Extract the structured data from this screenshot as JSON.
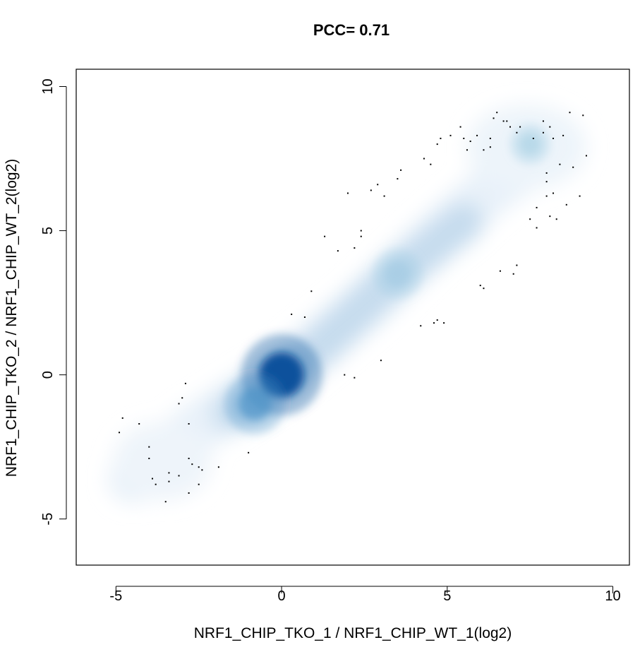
{
  "chart_data": {
    "type": "scatter",
    "style": "smoothScatter density",
    "title": "PCC= 0.71",
    "xlabel": "NRF1_CHIP_TKO_1 / NRF1_CHIP_WT_1(log2)",
    "ylabel": "NRF1_CHIP_TKO_2 / NRF1_CHIP_WT_2(log2)",
    "xlim": [
      -6.2,
      10.5
    ],
    "ylim": [
      -6.6,
      10.6
    ],
    "x_ticks": [
      -5,
      0,
      5,
      10
    ],
    "x_tick_labels": [
      "-5",
      "0",
      "5",
      "10"
    ],
    "y_ticks": [
      -5,
      0,
      5,
      10
    ],
    "y_tick_labels": [
      "-5",
      "0",
      "5",
      "10"
    ],
    "grid": false,
    "legend": "none",
    "colors": {
      "density_low": "#e8f1f9",
      "density_mid": "#9ecae1",
      "density_high": "#08519c",
      "points": "#000000"
    },
    "density_centers": [
      {
        "x": 0,
        "y": 0,
        "weight": 1.0
      },
      {
        "x": -0.8,
        "y": -1.0,
        "weight": 0.55
      },
      {
        "x": 3.5,
        "y": 3.5,
        "weight": 0.3
      },
      {
        "x": 7.5,
        "y": 8.0,
        "weight": 0.1
      }
    ],
    "points": [
      [
        -4.9,
        -2.0
      ],
      [
        -4.8,
        -1.5
      ],
      [
        -4.3,
        -1.7
      ],
      [
        -4.0,
        -2.5
      ],
      [
        -4.0,
        -2.9
      ],
      [
        -3.9,
        -3.6
      ],
      [
        -3.8,
        -3.8
      ],
      [
        -3.5,
        -4.4
      ],
      [
        -3.4,
        -3.4
      ],
      [
        -3.4,
        -3.7
      ],
      [
        -3.1,
        -3.5
      ],
      [
        -3.1,
        -1.0
      ],
      [
        -3.0,
        -0.8
      ],
      [
        -2.9,
        -0.3
      ],
      [
        -2.8,
        -1.7
      ],
      [
        -2.8,
        -2.9
      ],
      [
        -2.7,
        -3.1
      ],
      [
        -2.8,
        -4.1
      ],
      [
        -2.5,
        -3.2
      ],
      [
        -2.5,
        -3.8
      ],
      [
        -2.4,
        -3.3
      ],
      [
        -1.9,
        -3.2
      ],
      [
        -1.0,
        -2.7
      ],
      [
        0.3,
        2.1
      ],
      [
        0.7,
        2.0
      ],
      [
        0.9,
        2.9
      ],
      [
        1.3,
        4.8
      ],
      [
        1.7,
        4.3
      ],
      [
        1.9,
        0.0
      ],
      [
        2.0,
        6.3
      ],
      [
        2.2,
        -0.1
      ],
      [
        2.2,
        4.4
      ],
      [
        2.4,
        5.0
      ],
      [
        2.4,
        4.8
      ],
      [
        2.7,
        6.4
      ],
      [
        2.9,
        6.6
      ],
      [
        3.0,
        0.5
      ],
      [
        3.1,
        6.2
      ],
      [
        3.5,
        6.8
      ],
      [
        3.6,
        7.1
      ],
      [
        4.2,
        1.7
      ],
      [
        4.3,
        7.5
      ],
      [
        4.5,
        7.3
      ],
      [
        4.6,
        1.8
      ],
      [
        4.7,
        1.9
      ],
      [
        4.7,
        8.0
      ],
      [
        4.8,
        8.2
      ],
      [
        4.9,
        1.8
      ],
      [
        5.1,
        8.3
      ],
      [
        5.4,
        8.6
      ],
      [
        5.5,
        8.2
      ],
      [
        5.6,
        7.8
      ],
      [
        5.7,
        8.1
      ],
      [
        5.9,
        8.3
      ],
      [
        6.0,
        3.1
      ],
      [
        6.1,
        3.0
      ],
      [
        6.1,
        7.8
      ],
      [
        6.3,
        7.9
      ],
      [
        6.3,
        8.2
      ],
      [
        6.4,
        8.9
      ],
      [
        6.5,
        9.1
      ],
      [
        6.6,
        3.6
      ],
      [
        6.7,
        8.8
      ],
      [
        6.8,
        8.8
      ],
      [
        6.9,
        8.6
      ],
      [
        7.0,
        3.5
      ],
      [
        7.1,
        3.8
      ],
      [
        7.1,
        8.4
      ],
      [
        7.2,
        8.6
      ],
      [
        7.5,
        5.4
      ],
      [
        7.6,
        8.2
      ],
      [
        7.7,
        5.8
      ],
      [
        7.7,
        5.1
      ],
      [
        7.9,
        8.8
      ],
      [
        7.9,
        8.4
      ],
      [
        8.0,
        6.7
      ],
      [
        8.0,
        7.0
      ],
      [
        8.0,
        6.2
      ],
      [
        8.1,
        8.6
      ],
      [
        8.1,
        5.5
      ],
      [
        8.2,
        6.3
      ],
      [
        8.2,
        8.2
      ],
      [
        8.3,
        5.4
      ],
      [
        8.4,
        7.3
      ],
      [
        8.5,
        8.3
      ],
      [
        8.6,
        5.9
      ],
      [
        8.7,
        9.1
      ],
      [
        8.8,
        7.2
      ],
      [
        9.0,
        6.2
      ],
      [
        9.1,
        9.0
      ],
      [
        9.2,
        7.6
      ]
    ]
  }
}
